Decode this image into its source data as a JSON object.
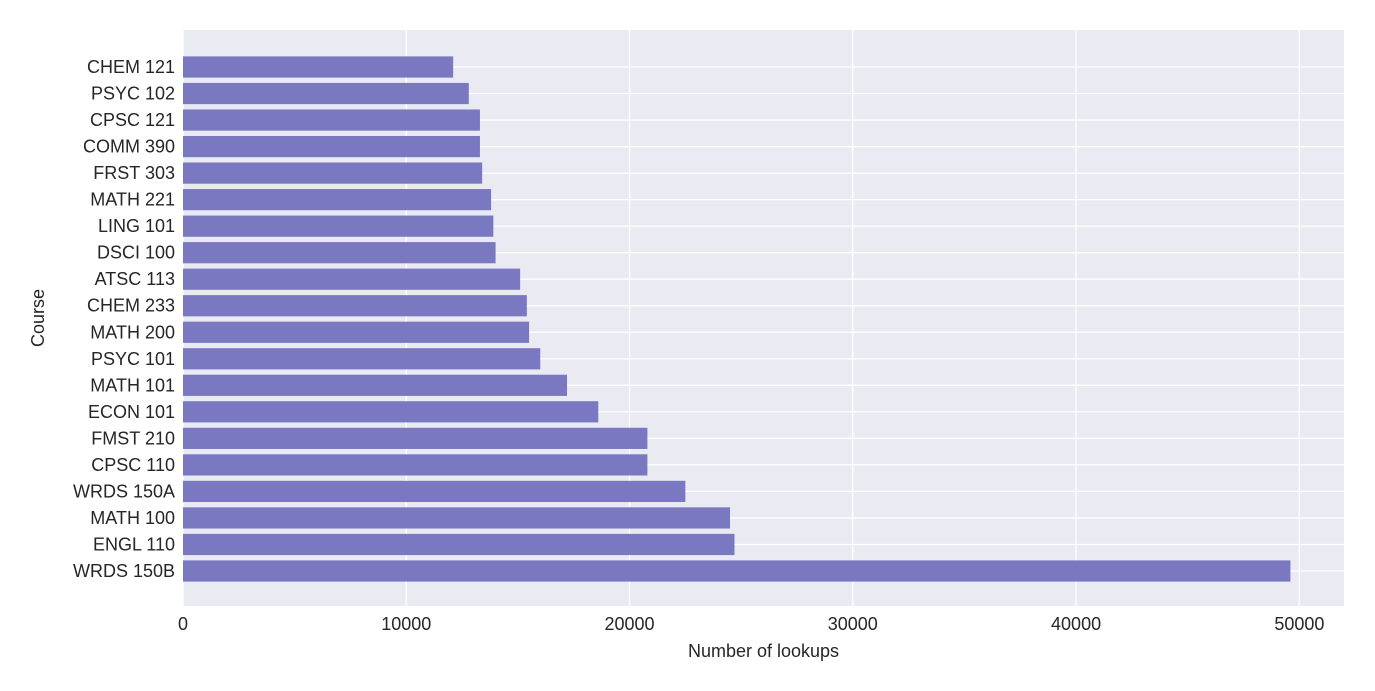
{
  "chart_data": {
    "type": "bar",
    "orientation": "horizontal",
    "title": "",
    "xlabel": "Number of lookups",
    "ylabel": "Course",
    "categories": [
      "WRDS 150B",
      "ENGL 110",
      "MATH 100",
      "WRDS 150A",
      "CPSC 110",
      "FMST 210",
      "ECON 101",
      "MATH 101",
      "PSYC 101",
      "MATH 200",
      "CHEM 233",
      "ATSC 113",
      "DSCI 100",
      "LING 101",
      "MATH 221",
      "FRST 303",
      "COMM 390",
      "CPSC 121",
      "PSYC 102",
      "CHEM 121"
    ],
    "values": [
      49600,
      24700,
      24500,
      22500,
      20800,
      20800,
      18600,
      17200,
      16000,
      15500,
      15400,
      15100,
      14000,
      13900,
      13800,
      13400,
      13300,
      13300,
      12800,
      12100
    ],
    "xlim": [
      0,
      52000
    ],
    "xticks": [
      0,
      10000,
      20000,
      30000,
      40000,
      50000
    ],
    "xtick_labels": [
      "0",
      "10000",
      "20000",
      "30000",
      "40000",
      "50000"
    ],
    "grid": true,
    "bar_color": "#7b78c2",
    "background_color": "#eaeaf2",
    "grid_color": "#ffffff"
  }
}
